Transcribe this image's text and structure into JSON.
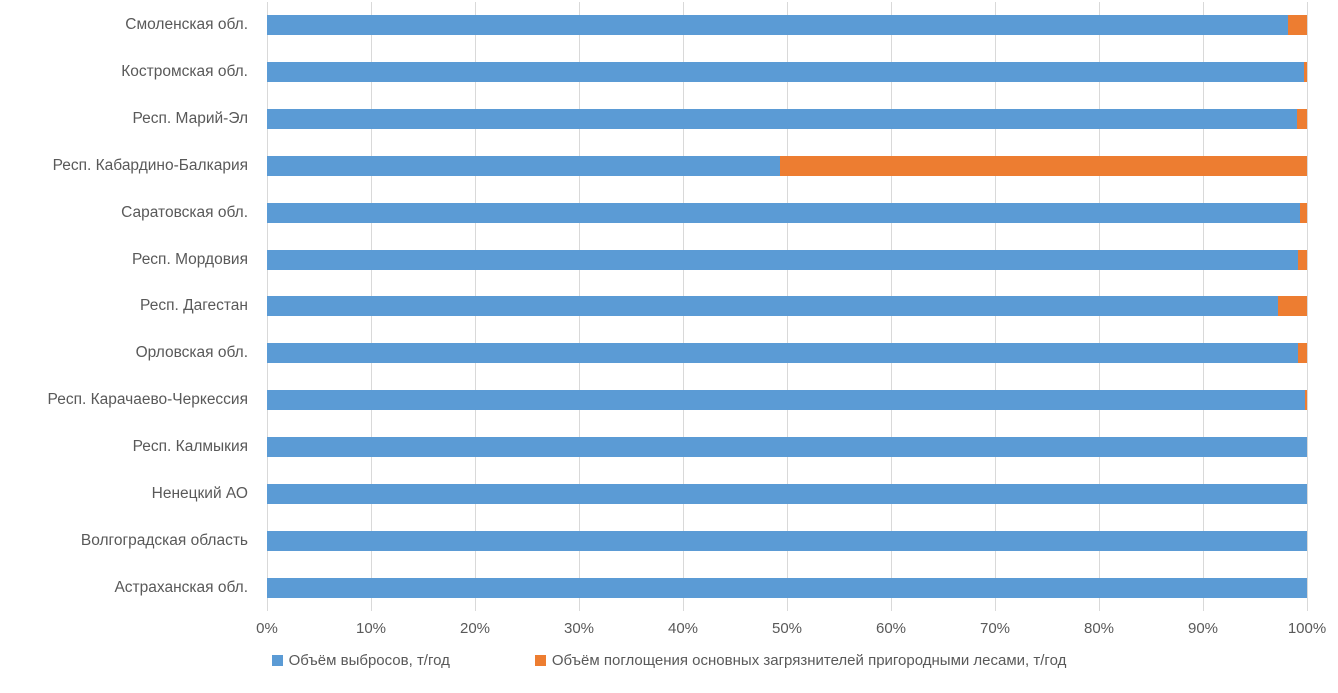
{
  "chart_data": {
    "type": "bar",
    "orientation": "horizontal",
    "stacking": "percent",
    "title": "",
    "xlabel": "",
    "ylabel": "",
    "categories": [
      "Смоленская обл.",
      "Костромская обл.",
      "Респ. Марий-Эл",
      "Респ. Кабардино-Балкария",
      "Саратовская обл.",
      "Респ. Мордовия",
      "Респ. Дагестан",
      "Орловская обл.",
      "Респ. Карачаево-Черкессия",
      "Респ. Калмыкия",
      "Ненецкий АО",
      "Волгоградская область",
      "Астраханская обл."
    ],
    "series": [
      {
        "name": "Объём выбросов, т/год",
        "color": "#5B9BD5",
        "percent_values": [
          98.2,
          99.7,
          99.0,
          49.3,
          99.3,
          99.1,
          97.2,
          99.1,
          99.85,
          100,
          100,
          100,
          100
        ]
      },
      {
        "name": "Объём поглощения основных загрязнителей пригородными лесами, т/год",
        "color": "#ED7D31",
        "percent_values": [
          1.8,
          0.3,
          1.0,
          50.7,
          0.7,
          0.9,
          2.8,
          0.9,
          0.15,
          0,
          0,
          0,
          0
        ]
      }
    ],
    "x_axis": {
      "ticks": [
        "0%",
        "10%",
        "20%",
        "30%",
        "40%",
        "50%",
        "60%",
        "70%",
        "80%",
        "90%",
        "100%"
      ],
      "range": [
        0,
        100
      ],
      "gridlines": true
    },
    "legend_position": "bottom"
  },
  "colors": {
    "background": "#FFFFFF",
    "gridline": "#D9D9D9",
    "axis_text": "#595959"
  }
}
